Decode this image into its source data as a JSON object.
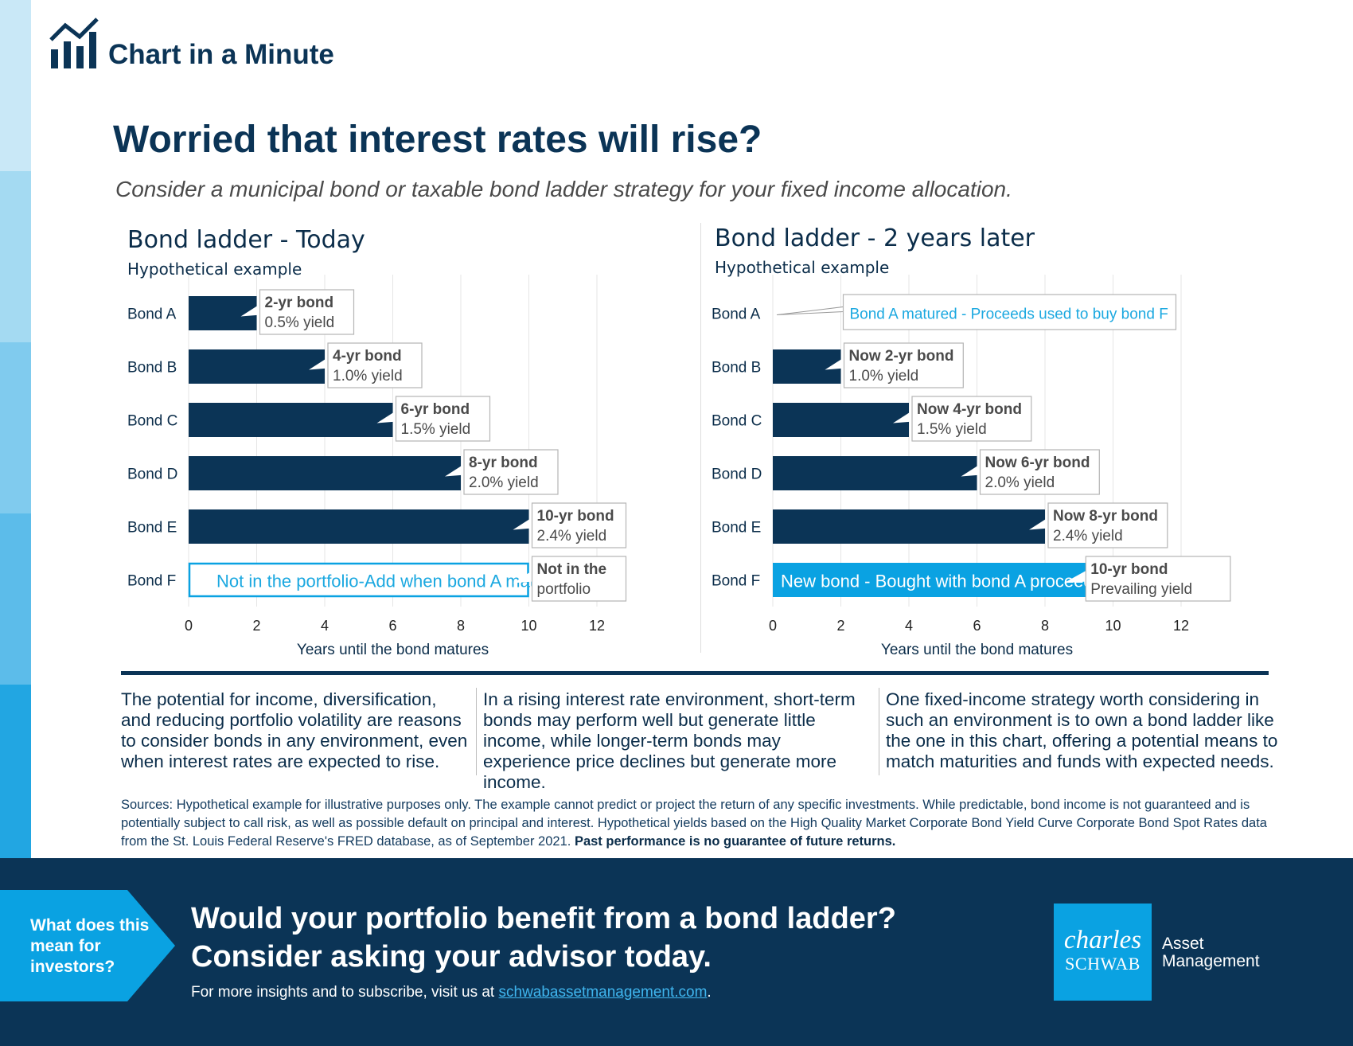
{
  "colors": {
    "navy": "#0b3456",
    "bar": "#0b3456",
    "accent": "#0aa2e2",
    "cyan_text": "#1ba8e0",
    "stripe": [
      "#c9e8f7",
      "#a4daf2",
      "#80cbee",
      "#5cbcea",
      "#22a6e2"
    ]
  },
  "header": {
    "brand": "Chart in a Minute",
    "brand_icon": "bar-chart-trend-icon",
    "headline": "Worried that interest rates will rise?",
    "subhead": "Consider a municipal bond or taxable bond ladder strategy for your fixed income allocation."
  },
  "chart_data": [
    {
      "type": "bar",
      "orientation": "horizontal",
      "title": "Bond ladder - Today",
      "subtitle": "Hypothetical example",
      "xlabel": "Years until the bond matures",
      "ylabel": "",
      "xlim": [
        0,
        12
      ],
      "xticks": [
        0,
        2,
        4,
        6,
        8,
        10,
        12
      ],
      "grid": true,
      "categories": [
        "Bond A",
        "Bond B",
        "Bond C",
        "Bond D",
        "Bond E",
        "Bond F"
      ],
      "values": [
        2,
        4,
        6,
        8,
        10,
        10
      ],
      "styles": [
        "filled",
        "filled",
        "filled",
        "filled",
        "filled",
        "outline"
      ],
      "bar_texts": [
        "",
        "",
        "",
        "",
        "",
        "Not in the portfolio-Add when bond A matures"
      ],
      "callouts": [
        {
          "l1": "2-yr bond",
          "l2": "0.5% yield"
        },
        {
          "l1": "4-yr bond",
          "l2": "1.0% yield"
        },
        {
          "l1": "6-yr bond",
          "l2": "1.5% yield"
        },
        {
          "l1": "8-yr bond",
          "l2": "2.0% yield"
        },
        {
          "l1": "10-yr bond",
          "l2": "2.4% yield"
        },
        {
          "l1": "Not in the",
          "l2": "portfolio"
        }
      ]
    },
    {
      "type": "bar",
      "orientation": "horizontal",
      "title": "Bond ladder - 2 years later",
      "subtitle": "Hypothetical example",
      "xlabel": "Years until the bond matures",
      "ylabel": "",
      "xlim": [
        0,
        12
      ],
      "xticks": [
        0,
        2,
        4,
        6,
        8,
        10,
        12
      ],
      "grid": true,
      "categories": [
        "Bond A",
        "Bond B",
        "Bond C",
        "Bond D",
        "Bond E",
        "Bond F"
      ],
      "values": [
        0,
        2,
        4,
        6,
        8,
        10
      ],
      "styles": [
        "none",
        "filled",
        "filled",
        "filled",
        "filled",
        "accent"
      ],
      "bar_texts": [
        "",
        "",
        "",
        "",
        "",
        "New bond - Bought with bond A proceeds"
      ],
      "callouts": [
        {
          "l1": "Bond A matured - Proceeds used to buy bond F",
          "l2": ""
        },
        {
          "l1": "Now 2-yr bond",
          "l2": "1.0% yield"
        },
        {
          "l1": "Now 4-yr bond",
          "l2": "1.5% yield"
        },
        {
          "l1": "Now 6-yr bond",
          "l2": "2.0% yield"
        },
        {
          "l1": "Now 8-yr bond",
          "l2": "2.4% yield"
        },
        {
          "l1": "10-yr bond",
          "l2": "Prevailing yield"
        }
      ]
    }
  ],
  "columns": [
    "The potential for income, diversification, and reducing portfolio volatility are reasons to consider bonds in any environment, even when interest rates are expected to rise.",
    "In a rising interest rate environment, short-term bonds may perform well but generate little income, while longer-term bonds may experience price declines but generate more income.",
    "One fixed-income strategy worth considering in such an environment is to own a bond ladder like the one in this chart, offering a potential means to match maturities and funds with expected needs."
  ],
  "sources": {
    "text": "Sources: Hypothetical example for illustrative purposes only. The example cannot predict or project the return of any specific investments. While predictable, bond income is not guaranteed and is potentially subject to call risk, as well as possible default on principal and interest. Hypothetical yields based on the High Quality Market Corporate Bond Yield Curve Corporate Bond Spot Rates data from the St. Louis Federal Reserve's FRED database, as of September 2021.",
    "bold": "Past performance is no guarantee of future returns."
  },
  "footer": {
    "tab": "What does this mean for investors?",
    "cta": "Would your portfolio benefit from a bond ladder? Consider asking your advisor today.",
    "more_prefix": "For more insights and to subscribe, visit us at",
    "link": "schwabassetmanagement.com",
    "more_suffix": ".",
    "logo_top": "charles",
    "logo_bottom": "SCHWAB",
    "logo_side_1": "Asset",
    "logo_side_2": "Management"
  }
}
